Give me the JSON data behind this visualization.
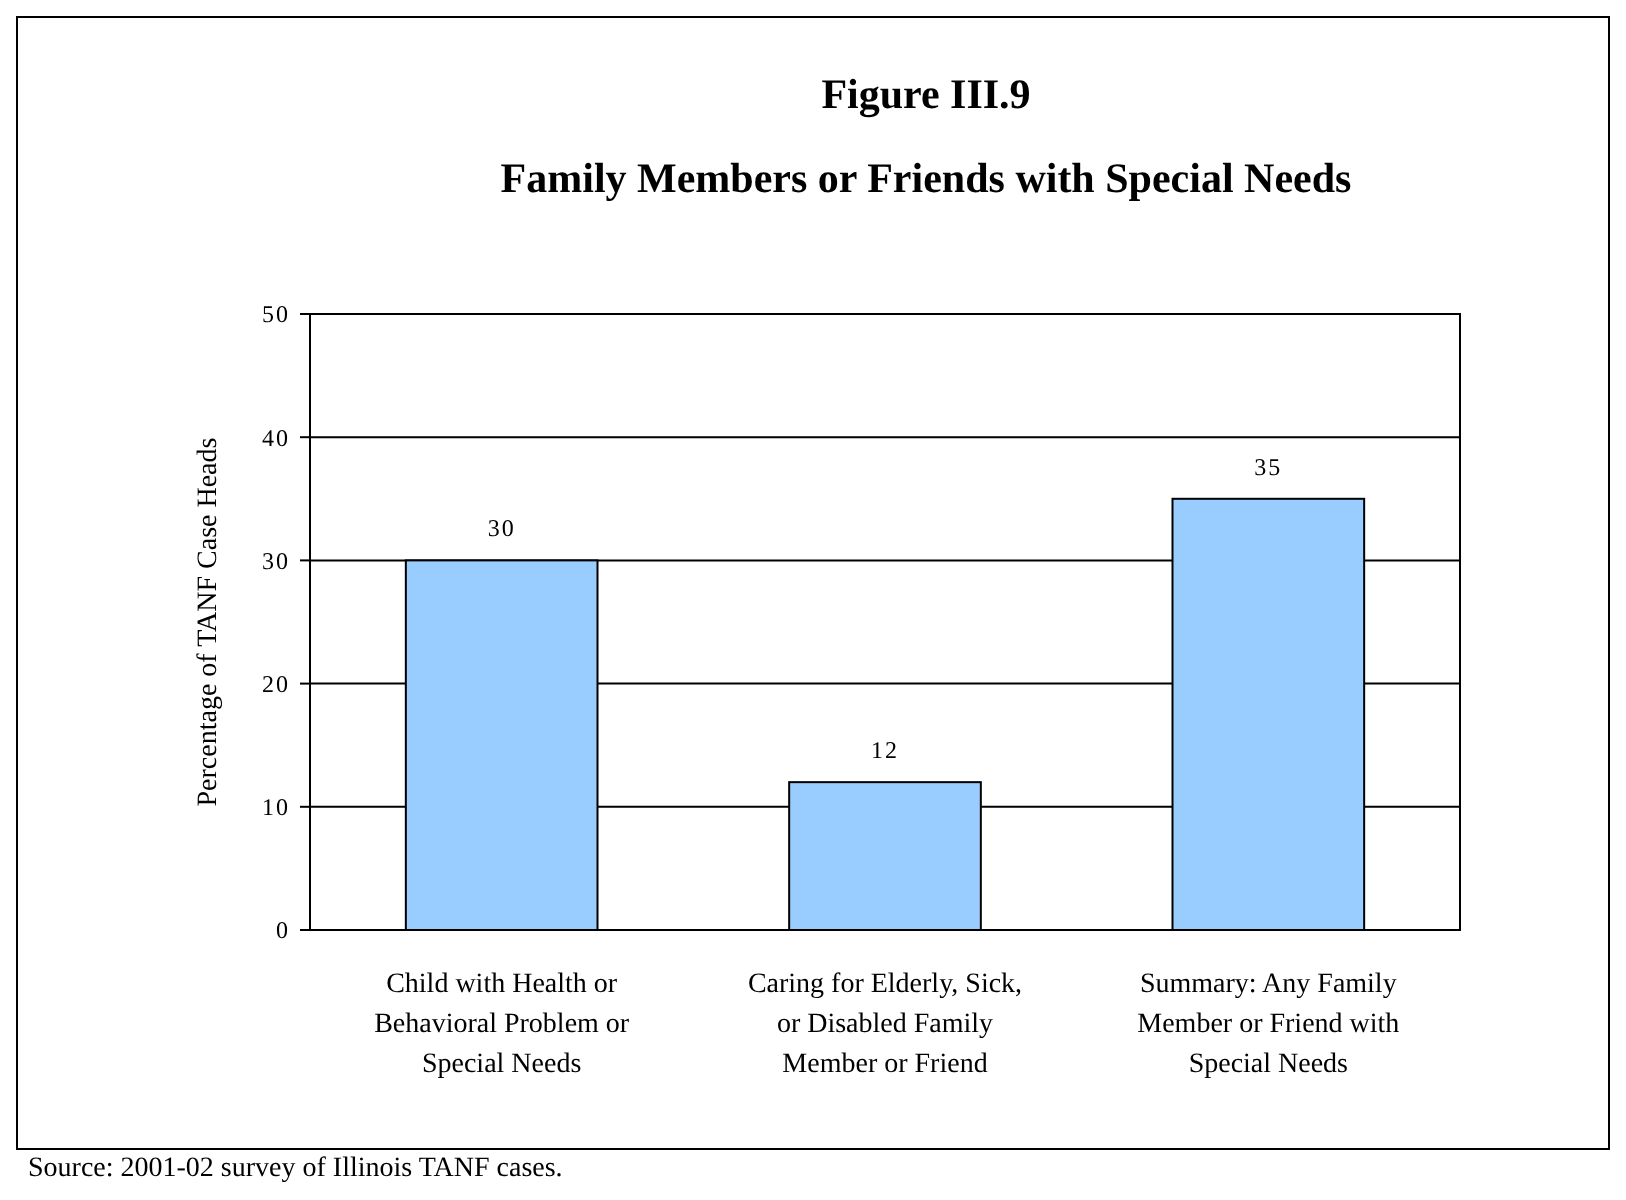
{
  "chart_data": {
    "type": "bar",
    "title": "Figure III.9",
    "subtitle": "Family Members or Friends with Special Needs",
    "ylabel": "Percentage of TANF Case Heads",
    "categories": [
      "Child with Health or Behavioral Problem or Special Needs",
      "Caring for Elderly, Sick, or Disabled Family Member or Friend",
      "Summary: Any Family Member or Friend with Special Needs"
    ],
    "values": [
      30,
      12,
      35
    ],
    "color": "#99ccff",
    "ylim": [
      0,
      50
    ],
    "yticks": [
      0,
      10,
      20,
      30,
      40,
      50
    ],
    "grid": "y",
    "data_labels": true,
    "annotations": [
      "Source:  2001-02 survey of Illinois TANF cases."
    ]
  }
}
